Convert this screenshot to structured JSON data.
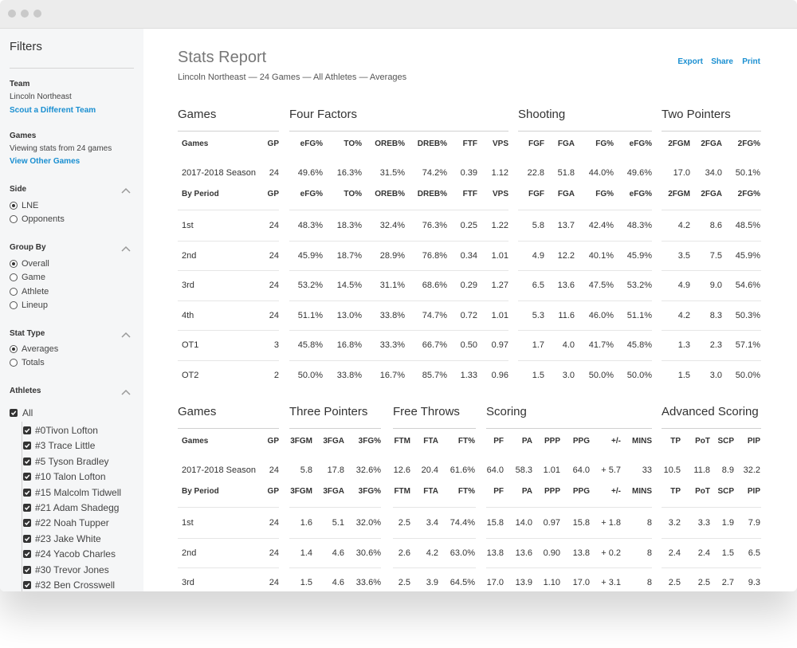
{
  "sidebar": {
    "title": "Filters",
    "team": {
      "label": "Team",
      "value": "Lincoln Northeast",
      "link": "Scout a Different Team"
    },
    "games": {
      "label": "Games",
      "value": "Viewing stats from 24 games",
      "link": "View Other Games"
    },
    "side": {
      "label": "Side",
      "options": [
        "LNE",
        "Opponents"
      ],
      "selected": 0
    },
    "group_by": {
      "label": "Group By",
      "options": [
        "Overall",
        "Game",
        "Athlete",
        "Lineup"
      ],
      "selected": 0
    },
    "stat_type": {
      "label": "Stat Type",
      "options": [
        "Averages",
        "Totals"
      ],
      "selected": 0
    },
    "athletes": {
      "label": "Athletes",
      "all": "All",
      "checked": true,
      "names": [
        "#0Tivon Lofton",
        "#3 Trace Little",
        "#5 Tyson Bradley",
        "#10 Talon Lofton",
        "#15 Malcolm Tidwell",
        "#21 Adam Shadegg",
        "#22 Noah Tupper",
        "#23 Jake White",
        "#24 Yacob Charles",
        "#30 Trevor Jones",
        "#32 Ben Crosswell"
      ]
    }
  },
  "report": {
    "title": "Stats Report",
    "subtitle": "Lincoln Northeast — 24 Games — All Athletes — Averages",
    "actions": [
      "Export",
      "Share",
      "Print"
    ]
  },
  "tables": [
    {
      "groups": [
        {
          "title": "Games",
          "columns": [
            "Games",
            "GP"
          ]
        },
        {
          "title": "Four Factors",
          "columns": [
            "eFG%",
            "TO%",
            "OREB%",
            "DREB%",
            "FTF",
            "VPS"
          ]
        },
        {
          "title": "Shooting",
          "columns": [
            "FGF",
            "FGA",
            "FG%",
            "eFG%"
          ]
        },
        {
          "title": "Two Pointers",
          "columns": [
            "2FGM",
            "2FGA",
            "2FG%"
          ]
        }
      ],
      "season": [
        "2017-2018 Season",
        "24",
        "49.6%",
        "16.3%",
        "31.5%",
        "74.2%",
        "0.39",
        "1.12",
        "22.8",
        "51.8",
        "44.0%",
        "49.6%",
        "17.0",
        "34.0",
        "50.1%"
      ],
      "period_label": "By Period",
      "rows": [
        [
          "1st",
          "24",
          "48.3%",
          "18.3%",
          "32.4%",
          "76.3%",
          "0.25",
          "1.22",
          "5.8",
          "13.7",
          "42.4%",
          "48.3%",
          "4.2",
          "8.6",
          "48.5%"
        ],
        [
          "2nd",
          "24",
          "45.9%",
          "18.7%",
          "28.9%",
          "76.8%",
          "0.34",
          "1.01",
          "4.9",
          "12.2",
          "40.1%",
          "45.9%",
          "3.5",
          "7.5",
          "45.9%"
        ],
        [
          "3rd",
          "24",
          "53.2%",
          "14.5%",
          "31.1%",
          "68.6%",
          "0.29",
          "1.27",
          "6.5",
          "13.6",
          "47.5%",
          "53.2%",
          "4.9",
          "9.0",
          "54.6%"
        ],
        [
          "4th",
          "24",
          "51.1%",
          "13.0%",
          "33.8%",
          "74.7%",
          "0.72",
          "1.01",
          "5.3",
          "11.6",
          "46.0%",
          "51.1%",
          "4.2",
          "8.3",
          "50.3%"
        ],
        [
          "OT1",
          "3",
          "45.8%",
          "16.8%",
          "33.3%",
          "66.7%",
          "0.50",
          "0.97",
          "1.7",
          "4.0",
          "41.7%",
          "45.8%",
          "1.3",
          "2.3",
          "57.1%"
        ],
        [
          "OT2",
          "2",
          "50.0%",
          "33.8%",
          "16.7%",
          "85.7%",
          "1.33",
          "0.96",
          "1.5",
          "3.0",
          "50.0%",
          "50.0%",
          "1.5",
          "3.0",
          "50.0%"
        ]
      ]
    },
    {
      "groups": [
        {
          "title": "Games",
          "columns": [
            "Games",
            "GP"
          ]
        },
        {
          "title": "Three Pointers",
          "columns": [
            "3FGM",
            "3FGA",
            "3FG%"
          ]
        },
        {
          "title": "Free Throws",
          "columns": [
            "FTM",
            "FTA",
            "FT%"
          ]
        },
        {
          "title": "Scoring",
          "columns": [
            "PF",
            "PA",
            "PPP",
            "PPG",
            "+/-",
            "MINS"
          ]
        },
        {
          "title": "Advanced Scoring",
          "columns": [
            "TP",
            "PoT",
            "SCP",
            "PIP"
          ]
        }
      ],
      "season": [
        "2017-2018 Season",
        "24",
        "5.8",
        "17.8",
        "32.6%",
        "12.6",
        "20.4",
        "61.6%",
        "64.0",
        "58.3",
        "1.01",
        "64.0",
        "+ 5.7",
        "33",
        "10.5",
        "11.8",
        "8.9",
        "32.2"
      ],
      "period_label": "By Period",
      "rows": [
        [
          "1st",
          "24",
          "1.6",
          "5.1",
          "32.0%",
          "2.5",
          "3.4",
          "74.4%",
          "15.8",
          "14.0",
          "0.97",
          "15.8",
          "+ 1.8",
          "8",
          "3.2",
          "3.3",
          "1.9",
          "7.9"
        ],
        [
          "2nd",
          "24",
          "1.4",
          "4.6",
          "30.6%",
          "2.6",
          "4.2",
          "63.0%",
          "13.8",
          "13.6",
          "0.90",
          "13.8",
          "+ 0.2",
          "8",
          "2.4",
          "2.4",
          "1.5",
          "6.5"
        ],
        [
          "3rd",
          "24",
          "1.5",
          "4.6",
          "33.6%",
          "2.5",
          "3.9",
          "64.5%",
          "17.0",
          "13.9",
          "1.10",
          "17.0",
          "+ 3.1",
          "8",
          "2.5",
          "2.5",
          "2.7",
          "9.3"
        ]
      ]
    }
  ]
}
